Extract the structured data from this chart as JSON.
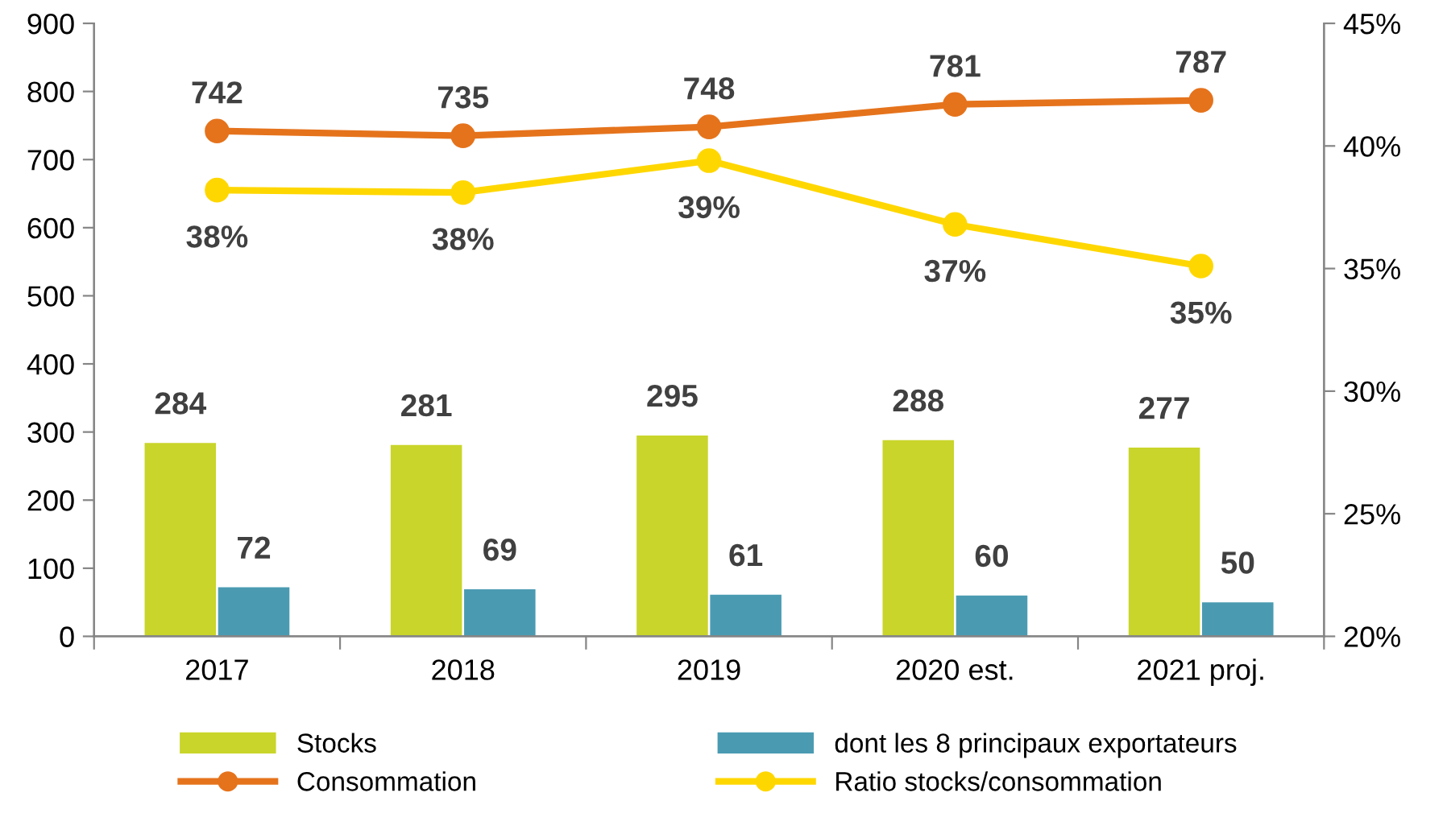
{
  "chart_data": {
    "type": "bar",
    "categories": [
      "2017",
      "2018",
      "2019",
      "2020 est.",
      "2021 proj."
    ],
    "series": [
      {
        "name": "Stocks",
        "color": "#c9d52a",
        "values": [
          284,
          281,
          295,
          288,
          277
        ]
      },
      {
        "name": "dont les 8 principaux exportateurs",
        "color": "#4a9bb2",
        "values": [
          72,
          69,
          61,
          60,
          50
        ]
      },
      {
        "name": "Consommation",
        "type": "line",
        "color": "#e5731c",
        "values": [
          742,
          735,
          748,
          781,
          787
        ]
      },
      {
        "name": "Ratio stocks/consommation",
        "type": "line",
        "axis": "y2",
        "color": "#ffd700",
        "values": [
          38.2,
          38.1,
          39.4,
          36.8,
          35.1
        ],
        "value_labels": [
          "38%",
          "38%",
          "39%",
          "37%",
          "35%"
        ]
      }
    ],
    "ylim": [
      0,
      900
    ],
    "yticks": [
      0,
      100,
      200,
      300,
      400,
      500,
      600,
      700,
      800,
      900
    ],
    "y2lim": [
      20,
      45
    ],
    "y2ticks": [
      {
        "value": 20,
        "label": "20%"
      },
      {
        "value": 25,
        "label": "25%"
      },
      {
        "value": 30,
        "label": "30%"
      },
      {
        "value": 35,
        "label": "35%"
      },
      {
        "value": 40,
        "label": "40%"
      },
      {
        "value": 45,
        "label": "45%"
      }
    ],
    "data_labels": true,
    "grid": false,
    "legend": "bottom",
    "marker": "circle",
    "line_style": "solid"
  }
}
